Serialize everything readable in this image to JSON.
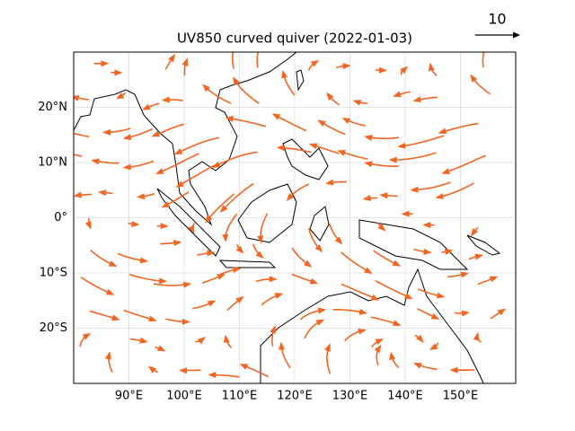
{
  "chart_data": {
    "type": "quiver",
    "title": "UV850 curved quiver (2022-01-03)",
    "xlim": [
      80,
      160
    ],
    "ylim": [
      -30,
      30
    ],
    "xticks": [
      {
        "value": 90,
        "label": "90°E"
      },
      {
        "value": 100,
        "label": "100°E"
      },
      {
        "value": 110,
        "label": "110°E"
      },
      {
        "value": 120,
        "label": "120°E"
      },
      {
        "value": 130,
        "label": "130°E"
      },
      {
        "value": 140,
        "label": "140°E"
      },
      {
        "value": 150,
        "label": "150°E"
      }
    ],
    "yticks": [
      {
        "value": -20,
        "label": "20°S"
      },
      {
        "value": -10,
        "label": "10°S"
      },
      {
        "value": 0,
        "label": "0°"
      },
      {
        "value": 10,
        "label": "10°N"
      },
      {
        "value": 20,
        "label": "20°N"
      }
    ],
    "grid": true,
    "color": "#f26522",
    "reference_vector": 10
  }
}
